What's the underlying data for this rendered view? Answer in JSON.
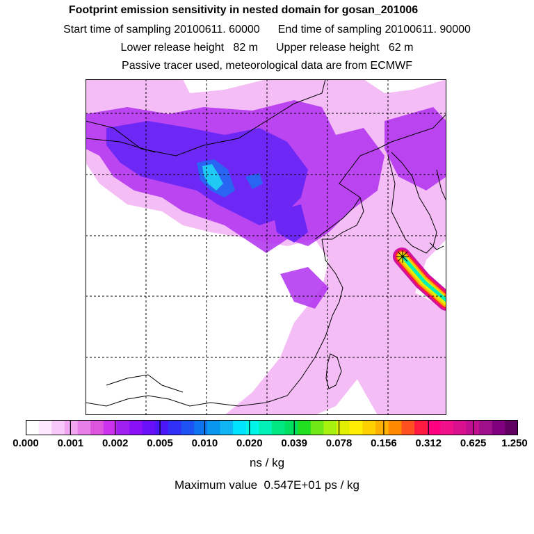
{
  "header": {
    "title": "Footprint emission sensitivity in nested domain for gosan_201006",
    "start_time": "Start time of sampling 20100611. 60000",
    "end_time": "End time of sampling 20100611. 90000",
    "lower_height": "Lower release height   82 m",
    "upper_height": "Upper release height   62 m",
    "tracer_note": "Passive tracer used, meteorological data are from ECMWF"
  },
  "colorbar": {
    "ticks": [
      "0.000",
      "0.001",
      "0.002",
      "0.005",
      "0.010",
      "0.020",
      "0.039",
      "0.078",
      "0.156",
      "0.312",
      "0.625",
      "1.250"
    ],
    "unit": "ns / kg",
    "colors": [
      "#ffffff",
      "#fde8fd",
      "#f8c8f8",
      "#f2a6f2",
      "#e87ee8",
      "#dd55dd",
      "#cc33ee",
      "#a020f0",
      "#8a10f5",
      "#6a10f8",
      "#4a18f8",
      "#3030f6",
      "#1c52f2",
      "#0f74f0",
      "#0896ef",
      "#10b4f3",
      "#00e5ff",
      "#00f5e8",
      "#00f0b8",
      "#00e680",
      "#00e060",
      "#20e020",
      "#70e818",
      "#a8f010",
      "#e0f000",
      "#ffee00",
      "#ffd000",
      "#ffb000",
      "#ff8a00",
      "#ff5020",
      "#ff1a40",
      "#ff0080",
      "#f0108a",
      "#d8108e",
      "#c01090",
      "#a0108a",
      "#800080",
      "#600060"
    ]
  },
  "max_value": "Maximum value  0.547E+01 ps / kg",
  "map": {
    "release_site": "gosan",
    "background_color": "#ffffff",
    "low_color": "#f2a6f2",
    "mid_color": "#a020f0",
    "high_color": "#3030f6"
  }
}
